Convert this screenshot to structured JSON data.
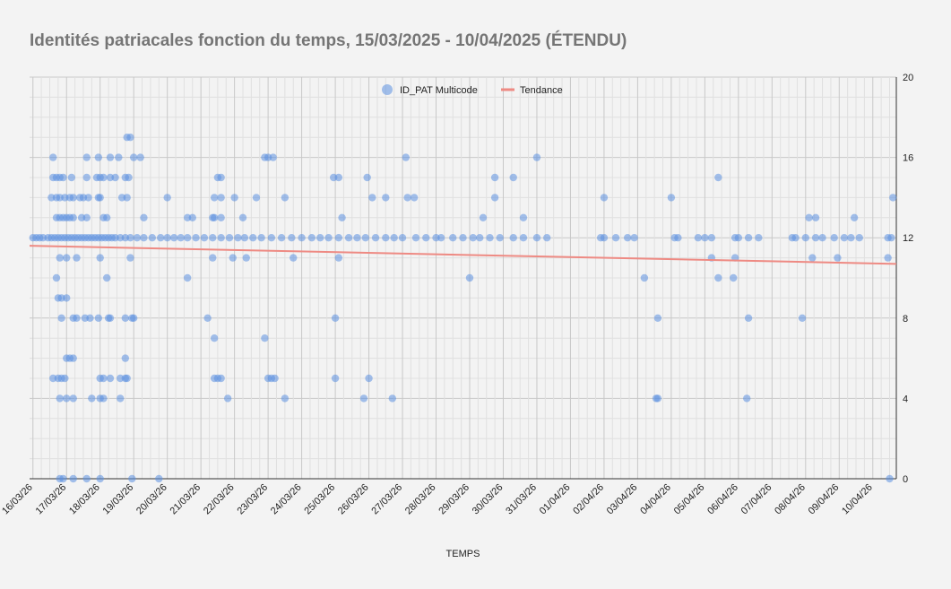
{
  "chart_data": {
    "type": "scatter",
    "title": "Identités patriacales fonction du temps, 15/03/2025 - 10/04/2025 (ÉTENDU)",
    "xlabel": "TEMPS",
    "ylabel": "",
    "x_tick_labels": [
      "16/03/26",
      "17/03/26",
      "18/03/26",
      "19/03/26",
      "20/03/26",
      "21/03/26",
      "22/03/26",
      "23/03/26",
      "24/03/26",
      "25/03/26",
      "26/03/26",
      "27/03/26",
      "28/03/26",
      "29/03/26",
      "30/03/26",
      "31/03/26",
      "01/04/26",
      "02/04/26",
      "03/04/26",
      "04/04/26",
      "05/04/26",
      "06/04/26",
      "07/04/26",
      "08/04/26",
      "09/04/26",
      "10/04/26"
    ],
    "xlim": [
      -0.1,
      25.7
    ],
    "ylim": [
      0,
      20
    ],
    "y_ticks": [
      0,
      4,
      8,
      12,
      16,
      20
    ],
    "y_axis_side": "right",
    "grid": true,
    "legend": {
      "position": "top",
      "entries": [
        "ID_PAT Multicode",
        "Tendance"
      ]
    },
    "colors": {
      "points": "#5b8fe0",
      "trend": "#ee8a83",
      "title": "#757575"
    },
    "series": [
      {
        "name": "ID_PAT Multicode",
        "points": [
          [
            0.0,
            12
          ],
          [
            0.1,
            12
          ],
          [
            0.2,
            12
          ],
          [
            0.3,
            12
          ],
          [
            0.45,
            12
          ],
          [
            0.55,
            12
          ],
          [
            0.65,
            12
          ],
          [
            0.75,
            12
          ],
          [
            0.85,
            12
          ],
          [
            0.95,
            12
          ],
          [
            1.05,
            12
          ],
          [
            1.15,
            12
          ],
          [
            1.25,
            12
          ],
          [
            1.35,
            12
          ],
          [
            1.45,
            12
          ],
          [
            1.55,
            12
          ],
          [
            1.65,
            12
          ],
          [
            1.75,
            12
          ],
          [
            1.85,
            12
          ],
          [
            1.95,
            12
          ],
          [
            2.05,
            12
          ],
          [
            2.15,
            12
          ],
          [
            2.25,
            12
          ],
          [
            2.35,
            12
          ],
          [
            2.45,
            12
          ],
          [
            2.6,
            12
          ],
          [
            2.75,
            12
          ],
          [
            2.9,
            12
          ],
          [
            3.1,
            12
          ],
          [
            3.3,
            12
          ],
          [
            3.55,
            12
          ],
          [
            3.8,
            12
          ],
          [
            4.0,
            12
          ],
          [
            4.2,
            12
          ],
          [
            4.4,
            12
          ],
          [
            4.6,
            12
          ],
          [
            4.85,
            12
          ],
          [
            5.1,
            12
          ],
          [
            5.35,
            12
          ],
          [
            5.6,
            12
          ],
          [
            5.85,
            12
          ],
          [
            6.1,
            12
          ],
          [
            6.3,
            12
          ],
          [
            6.55,
            12
          ],
          [
            6.8,
            12
          ],
          [
            7.1,
            12
          ],
          [
            7.4,
            12
          ],
          [
            7.7,
            12
          ],
          [
            8.0,
            12
          ],
          [
            8.3,
            12
          ],
          [
            8.55,
            12
          ],
          [
            8.8,
            12
          ],
          [
            9.1,
            12
          ],
          [
            9.4,
            12
          ],
          [
            9.65,
            12
          ],
          [
            9.9,
            12
          ],
          [
            10.2,
            12
          ],
          [
            10.5,
            12
          ],
          [
            10.75,
            12
          ],
          [
            11.0,
            12
          ],
          [
            11.4,
            12
          ],
          [
            11.7,
            12
          ],
          [
            12.0,
            12
          ],
          [
            12.15,
            12
          ],
          [
            12.5,
            12
          ],
          [
            12.8,
            12
          ],
          [
            13.1,
            12
          ],
          [
            13.3,
            12
          ],
          [
            13.6,
            12
          ],
          [
            13.9,
            12
          ],
          [
            14.3,
            12
          ],
          [
            14.6,
            12
          ],
          [
            15.0,
            12
          ],
          [
            15.3,
            12
          ],
          [
            16.9,
            12
          ],
          [
            17.0,
            12
          ],
          [
            17.35,
            12
          ],
          [
            17.7,
            12
          ],
          [
            17.9,
            12
          ],
          [
            19.1,
            12
          ],
          [
            19.2,
            12
          ],
          [
            19.8,
            12
          ],
          [
            20.0,
            12
          ],
          [
            20.2,
            12
          ],
          [
            20.9,
            12
          ],
          [
            21.0,
            12
          ],
          [
            21.3,
            12
          ],
          [
            21.6,
            12
          ],
          [
            22.6,
            12
          ],
          [
            22.7,
            12
          ],
          [
            23.0,
            12
          ],
          [
            23.3,
            12
          ],
          [
            23.5,
            12
          ],
          [
            23.85,
            12
          ],
          [
            24.15,
            12
          ],
          [
            24.35,
            12
          ],
          [
            24.6,
            12
          ],
          [
            25.45,
            12
          ],
          [
            25.55,
            12
          ],
          [
            0.6,
            16
          ],
          [
            1.6,
            16
          ],
          [
            1.95,
            16
          ],
          [
            2.3,
            16
          ],
          [
            2.55,
            16
          ],
          [
            3.0,
            16
          ],
          [
            3.2,
            16
          ],
          [
            6.9,
            16
          ],
          [
            7.0,
            16
          ],
          [
            7.15,
            16
          ],
          [
            11.1,
            16
          ],
          [
            15.0,
            16
          ],
          [
            2.8,
            17
          ],
          [
            2.9,
            17
          ],
          [
            0.6,
            15
          ],
          [
            0.7,
            15
          ],
          [
            0.8,
            15
          ],
          [
            0.9,
            15
          ],
          [
            1.15,
            15
          ],
          [
            1.6,
            15
          ],
          [
            1.9,
            15
          ],
          [
            2.0,
            15
          ],
          [
            2.1,
            15
          ],
          [
            2.3,
            15
          ],
          [
            2.45,
            15
          ],
          [
            2.75,
            15
          ],
          [
            2.85,
            15
          ],
          [
            5.5,
            15
          ],
          [
            5.6,
            15
          ],
          [
            8.95,
            15
          ],
          [
            9.1,
            15
          ],
          [
            9.95,
            15
          ],
          [
            13.75,
            15
          ],
          [
            14.3,
            15
          ],
          [
            20.4,
            15
          ],
          [
            0.55,
            14
          ],
          [
            0.7,
            14
          ],
          [
            0.8,
            14
          ],
          [
            0.95,
            14
          ],
          [
            1.1,
            14
          ],
          [
            1.2,
            14
          ],
          [
            1.4,
            14
          ],
          [
            1.5,
            14
          ],
          [
            1.65,
            14
          ],
          [
            1.95,
            14
          ],
          [
            2.0,
            14
          ],
          [
            2.65,
            14
          ],
          [
            2.8,
            14
          ],
          [
            4.0,
            14
          ],
          [
            5.4,
            14
          ],
          [
            5.6,
            14
          ],
          [
            6.0,
            14
          ],
          [
            6.65,
            14
          ],
          [
            7.5,
            14
          ],
          [
            10.1,
            14
          ],
          [
            10.5,
            14
          ],
          [
            11.15,
            14
          ],
          [
            11.35,
            14
          ],
          [
            13.75,
            14
          ],
          [
            17.0,
            14
          ],
          [
            19.0,
            14
          ],
          [
            25.6,
            14
          ],
          [
            0.7,
            13
          ],
          [
            0.8,
            13
          ],
          [
            0.9,
            13
          ],
          [
            1.0,
            13
          ],
          [
            1.1,
            13
          ],
          [
            1.2,
            13
          ],
          [
            1.45,
            13
          ],
          [
            1.6,
            13
          ],
          [
            2.1,
            13
          ],
          [
            2.2,
            13
          ],
          [
            3.3,
            13
          ],
          [
            4.6,
            13
          ],
          [
            4.75,
            13
          ],
          [
            5.35,
            13
          ],
          [
            5.4,
            13
          ],
          [
            5.6,
            13
          ],
          [
            6.25,
            13
          ],
          [
            9.2,
            13
          ],
          [
            13.4,
            13
          ],
          [
            14.6,
            13
          ],
          [
            23.1,
            13
          ],
          [
            23.3,
            13
          ],
          [
            24.45,
            13
          ],
          [
            0.8,
            11
          ],
          [
            1.0,
            11
          ],
          [
            1.3,
            11
          ],
          [
            2.0,
            11
          ],
          [
            2.9,
            11
          ],
          [
            5.35,
            11
          ],
          [
            5.95,
            11
          ],
          [
            6.35,
            11
          ],
          [
            7.75,
            11
          ],
          [
            9.1,
            11
          ],
          [
            20.2,
            11
          ],
          [
            20.9,
            11
          ],
          [
            23.2,
            11
          ],
          [
            23.95,
            11
          ],
          [
            25.45,
            11
          ],
          [
            0.7,
            10
          ],
          [
            2.2,
            10
          ],
          [
            4.6,
            10
          ],
          [
            13.0,
            10
          ],
          [
            18.2,
            10
          ],
          [
            20.4,
            10
          ],
          [
            20.85,
            10
          ],
          [
            0.75,
            9
          ],
          [
            0.85,
            9
          ],
          [
            1.0,
            9
          ],
          [
            0.85,
            8
          ],
          [
            1.2,
            8
          ],
          [
            1.3,
            8
          ],
          [
            1.55,
            8
          ],
          [
            1.7,
            8
          ],
          [
            1.95,
            8
          ],
          [
            2.25,
            8
          ],
          [
            2.3,
            8
          ],
          [
            2.75,
            8
          ],
          [
            2.95,
            8
          ],
          [
            3.0,
            8
          ],
          [
            5.2,
            8
          ],
          [
            9.0,
            8
          ],
          [
            18.6,
            8
          ],
          [
            21.3,
            8
          ],
          [
            22.9,
            8
          ],
          [
            5.4,
            7
          ],
          [
            6.9,
            7
          ],
          [
            2.75,
            6
          ],
          [
            1.0,
            6
          ],
          [
            1.1,
            6
          ],
          [
            1.2,
            6
          ],
          [
            0.6,
            5
          ],
          [
            0.75,
            5
          ],
          [
            0.85,
            5
          ],
          [
            0.95,
            5
          ],
          [
            2.0,
            5
          ],
          [
            2.1,
            5
          ],
          [
            2.3,
            5
          ],
          [
            2.6,
            5
          ],
          [
            2.75,
            5
          ],
          [
            2.8,
            5
          ],
          [
            5.4,
            5
          ],
          [
            5.5,
            5
          ],
          [
            5.6,
            5
          ],
          [
            7.0,
            5
          ],
          [
            7.1,
            5
          ],
          [
            7.2,
            5
          ],
          [
            9.0,
            5
          ],
          [
            10.0,
            5
          ],
          [
            0.8,
            4
          ],
          [
            1.0,
            4
          ],
          [
            1.2,
            4
          ],
          [
            1.75,
            4
          ],
          [
            2.0,
            4
          ],
          [
            2.1,
            4
          ],
          [
            2.6,
            4
          ],
          [
            5.8,
            4
          ],
          [
            7.5,
            4
          ],
          [
            9.85,
            4
          ],
          [
            10.7,
            4
          ],
          [
            18.55,
            4
          ],
          [
            18.6,
            4
          ],
          [
            21.25,
            4
          ],
          [
            0.8,
            0
          ],
          [
            0.9,
            0
          ],
          [
            1.2,
            0
          ],
          [
            1.6,
            0
          ],
          [
            2.0,
            0
          ],
          [
            2.95,
            0
          ],
          [
            3.75,
            0
          ],
          [
            25.5,
            0
          ]
        ]
      },
      {
        "name": "Tendance",
        "type": "line",
        "points": [
          [
            -0.1,
            11.6
          ],
          [
            25.7,
            10.7
          ]
        ]
      }
    ]
  }
}
